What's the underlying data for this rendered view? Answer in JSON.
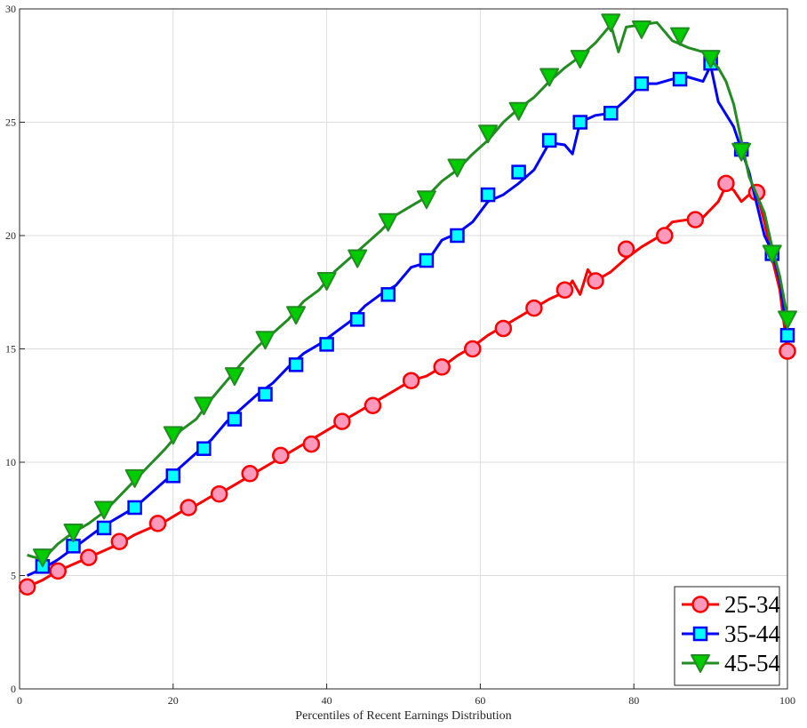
{
  "chart_data": {
    "type": "line",
    "xlabel": "Percentiles of Recent Earnings Distribution",
    "ylabel": "",
    "title": "",
    "xlim": [
      0,
      100
    ],
    "ylim": [
      0,
      30
    ],
    "xticks": [
      "0",
      "20",
      "40",
      "60",
      "80",
      "100"
    ],
    "yticks": [
      "0",
      "5",
      "10",
      "15",
      "20",
      "25",
      "30"
    ],
    "grid": true,
    "legend_position": "bottom-right",
    "series": [
      {
        "name": "25-34",
        "color": "#ff0000",
        "marker": "circle",
        "marker_fill": "#ff99bb",
        "x": [
          1,
          3,
          5,
          7,
          9,
          11,
          13,
          15,
          17,
          19,
          21,
          23,
          25,
          27,
          29,
          31,
          33,
          35,
          37,
          39,
          41,
          43,
          45,
          47,
          49,
          51,
          53,
          55,
          57,
          59,
          61,
          63,
          65,
          67,
          69,
          71,
          72,
          73,
          74,
          75,
          77,
          79,
          81,
          83,
          85,
          87,
          89,
          91,
          92,
          93,
          94,
          95,
          96,
          97,
          98,
          99,
          100
        ],
        "values": [
          4.5,
          4.8,
          5.2,
          5.5,
          5.8,
          6.1,
          6.4,
          6.8,
          7.1,
          7.4,
          7.8,
          8.1,
          8.5,
          8.8,
          9.2,
          9.6,
          10.0,
          10.4,
          10.8,
          11.2,
          11.6,
          12.0,
          12.4,
          12.8,
          13.2,
          13.6,
          13.8,
          14.2,
          14.7,
          15.1,
          15.6,
          16.0,
          16.4,
          16.8,
          17.2,
          17.5,
          18.0,
          17.4,
          18.5,
          18.0,
          18.4,
          19.0,
          19.5,
          19.9,
          20.6,
          20.7,
          20.8,
          21.5,
          22.2,
          22.0,
          21.5,
          21.8,
          21.9,
          20.6,
          19.0,
          17.6,
          14.9
        ],
        "marker_x": [
          1,
          5,
          9,
          13,
          18,
          22,
          26,
          30,
          34,
          38,
          42,
          46,
          51,
          55,
          59,
          63,
          67,
          71,
          75,
          79,
          84,
          88,
          92,
          96,
          100
        ],
        "marker_values": [
          4.5,
          5.2,
          5.8,
          6.5,
          7.3,
          8.0,
          8.6,
          9.5,
          10.3,
          10.8,
          11.8,
          12.5,
          13.6,
          14.2,
          15.0,
          15.9,
          16.8,
          17.6,
          18.0,
          19.4,
          20.0,
          20.7,
          22.3,
          21.9,
          14.9
        ]
      },
      {
        "name": "35-44",
        "color": "#0000ff",
        "marker": "square",
        "marker_fill": "#00ffff",
        "x": [
          1,
          3,
          5,
          7,
          9,
          11,
          13,
          15,
          17,
          19,
          21,
          23,
          25,
          27,
          29,
          31,
          33,
          35,
          37,
          39,
          41,
          43,
          45,
          47,
          49,
          51,
          53,
          55,
          57,
          59,
          61,
          63,
          65,
          67,
          69,
          71,
          72,
          73,
          75,
          77,
          79,
          81,
          83,
          85,
          87,
          89,
          90,
          91,
          93,
          95,
          97,
          98,
          99,
          100
        ],
        "values": [
          5.0,
          5.3,
          5.7,
          6.2,
          6.7,
          7.2,
          7.6,
          8.0,
          8.6,
          9.2,
          9.8,
          10.4,
          11.0,
          11.8,
          12.4,
          13.0,
          13.5,
          14.2,
          14.8,
          15.2,
          15.7,
          16.2,
          16.9,
          17.4,
          17.8,
          18.6,
          18.8,
          19.8,
          20.1,
          20.6,
          21.5,
          21.8,
          22.3,
          22.9,
          24.1,
          24.0,
          23.6,
          25.0,
          25.3,
          25.4,
          26.0,
          26.7,
          26.7,
          26.9,
          27.0,
          26.8,
          27.5,
          25.9,
          24.8,
          22.8,
          20.0,
          19.3,
          18.0,
          15.6
        ],
        "marker_x": [
          3,
          7,
          11,
          15,
          20,
          24,
          28,
          32,
          36,
          40,
          44,
          48,
          53,
          57,
          61,
          65,
          69,
          73,
          77,
          81,
          86,
          90,
          94,
          98,
          100
        ],
        "marker_values": [
          5.4,
          6.3,
          7.1,
          8.0,
          9.4,
          10.6,
          11.9,
          13.0,
          14.3,
          15.2,
          16.3,
          17.4,
          18.9,
          20.0,
          21.8,
          22.8,
          24.2,
          25.0,
          25.4,
          26.7,
          26.9,
          27.6,
          23.8,
          19.2,
          15.6
        ]
      },
      {
        "name": "45-54",
        "color": "#228B22",
        "marker": "triangle-down",
        "marker_fill": "#00cc00",
        "x": [
          1,
          3,
          5,
          7,
          9,
          11,
          13,
          15,
          17,
          19,
          21,
          23,
          25,
          27,
          29,
          31,
          33,
          35,
          37,
          39,
          41,
          43,
          45,
          47,
          49,
          51,
          53,
          55,
          57,
          59,
          61,
          63,
          65,
          67,
          69,
          71,
          73,
          75,
          77,
          78,
          79,
          81,
          83,
          85,
          87,
          89,
          91,
          92,
          93,
          95,
          97,
          98,
          99,
          100
        ],
        "values": [
          5.9,
          5.7,
          6.4,
          6.9,
          7.3,
          7.8,
          8.5,
          9.2,
          9.9,
          10.6,
          11.4,
          11.9,
          12.8,
          13.6,
          14.4,
          15.1,
          15.7,
          16.3,
          17.1,
          17.6,
          18.4,
          19.0,
          19.6,
          20.2,
          20.9,
          21.3,
          21.7,
          22.4,
          22.9,
          23.6,
          24.2,
          25.0,
          25.6,
          26.1,
          26.8,
          27.4,
          27.9,
          28.5,
          29.3,
          28.1,
          29.2,
          29.3,
          29.4,
          28.6,
          28.3,
          28.1,
          27.4,
          26.8,
          25.8,
          22.6,
          21.0,
          19.5,
          18.2,
          16.4
        ],
        "marker_x": [
          3,
          7,
          11,
          15,
          20,
          24,
          28,
          32,
          36,
          40,
          44,
          48,
          53,
          57,
          61,
          65,
          69,
          73,
          77,
          81,
          86,
          90,
          94,
          98,
          100
        ],
        "marker_values": [
          5.8,
          6.9,
          7.9,
          9.3,
          11.2,
          12.5,
          13.8,
          15.4,
          16.5,
          18.0,
          19.0,
          20.6,
          21.6,
          23.0,
          24.5,
          25.5,
          27.0,
          27.8,
          29.4,
          29.1,
          28.8,
          27.8,
          23.7,
          19.2,
          16.3
        ]
      }
    ]
  }
}
